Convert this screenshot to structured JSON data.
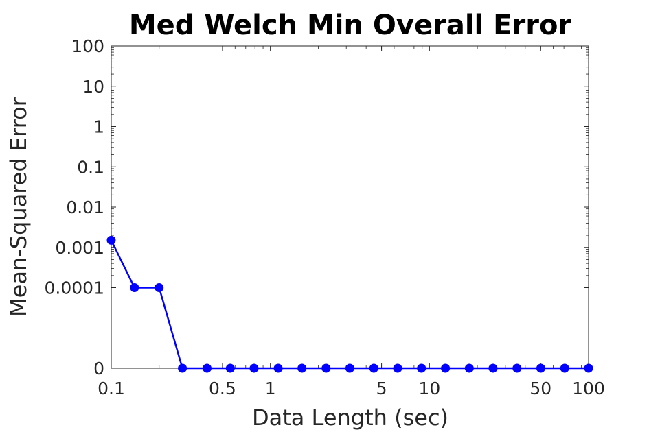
{
  "chart_data": {
    "type": "line",
    "title": "Med Welch Min Overall Error",
    "xlabel": "Data Length (sec)",
    "ylabel": "Mean-Squared Error",
    "xscale": "log",
    "yscale": "log",
    "xlim": [
      0.1,
      100
    ],
    "xticks": [
      {
        "value": 0.1,
        "label": "0.1"
      },
      {
        "value": 0.5,
        "label": "0.5"
      },
      {
        "value": 1,
        "label": "1"
      },
      {
        "value": 5,
        "label": "5"
      },
      {
        "value": 10,
        "label": "10"
      },
      {
        "value": 50,
        "label": "50"
      },
      {
        "value": 100,
        "label": "100"
      }
    ],
    "yticks": [
      {
        "label": "100"
      },
      {
        "label": "10"
      },
      {
        "label": "1"
      },
      {
        "label": "0.1"
      },
      {
        "label": "0.01"
      },
      {
        "label": "0.001"
      },
      {
        "label": "0.0001"
      },
      {
        "label": "0"
      }
    ],
    "grid": false,
    "series": [
      {
        "name": "Med Welch",
        "color": "#0000FF",
        "marker": "circle",
        "x": [
          0.1,
          0.14,
          0.2,
          0.28,
          0.4,
          0.56,
          0.79,
          1.12,
          1.58,
          2.24,
          3.16,
          4.47,
          6.31,
          8.91,
          12.6,
          17.8,
          25.1,
          35.5,
          50.1,
          70.8,
          100
        ],
        "y": [
          0.0015,
          0.0001,
          0.0001,
          0,
          0,
          0,
          0,
          0,
          0,
          0,
          0,
          0,
          0,
          0,
          0,
          0,
          0,
          0,
          0,
          0,
          0
        ]
      }
    ]
  }
}
